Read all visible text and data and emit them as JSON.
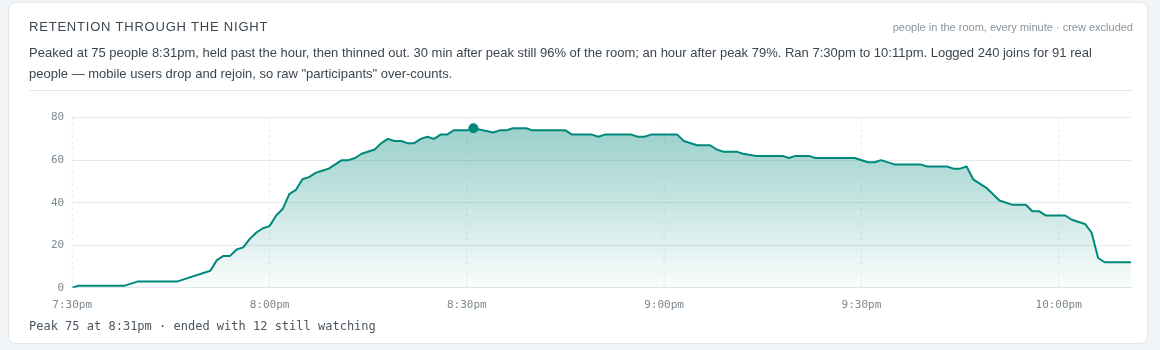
{
  "chart_data": {
    "type": "area",
    "title": "RETENTION THROUGH THE NIGHT",
    "subtitle": "Peaked at 75 people 8:31pm, held past the hour, then thinned out. 30 min after peak still 96% of the room; an hour after peak 79%. Ran 7:30pm to 10:11pm. Logged 240 joins for 91 real people — mobile users drop and rejoin, so raw \"participants\" over-counts.",
    "annotations": [
      "people in the room, every minute · crew excluded",
      "Peak 75 at 8:31pm · ended with 12 still watching"
    ],
    "xlim": [
      19.5,
      22.1833
    ],
    "xticks": [
      {
        "value": 19.5,
        "label": "7:30pm"
      },
      {
        "value": 20,
        "label": "8:00pm"
      },
      {
        "value": 20.5,
        "label": "8:30pm"
      },
      {
        "value": 21,
        "label": "9:00pm"
      },
      {
        "value": 21.5,
        "label": "9:30pm"
      },
      {
        "value": 22,
        "label": "10:00pm"
      }
    ],
    "ylim": [
      0,
      80
    ],
    "yticks": [
      0,
      20,
      40,
      60,
      80
    ],
    "grid": true,
    "legend": false,
    "series": [
      {
        "color": "#00897b",
        "x": [
          19.5,
          19.5167,
          19.6333,
          19.6667,
          19.7667,
          19.85,
          19.8667,
          19.8833,
          19.9,
          19.9167,
          19.9333,
          19.95,
          19.9667,
          19.9833,
          20,
          20.0167,
          20.0333,
          20.05,
          20.0667,
          20.0833,
          20.1,
          20.1167,
          20.1333,
          20.15,
          20.1667,
          20.1833,
          20.2,
          20.2167,
          20.2333,
          20.2667,
          20.2833,
          20.3,
          20.3167,
          20.3333,
          20.35,
          20.3667,
          20.3833,
          20.4,
          20.4167,
          20.4333,
          20.45,
          20.4667,
          20.5,
          20.5167,
          20.5667,
          20.5833,
          20.6,
          20.6167,
          20.65,
          20.6667,
          20.75,
          20.7667,
          20.8167,
          20.8333,
          20.85,
          20.9167,
          20.9333,
          20.95,
          20.9667,
          21.0333,
          21.05,
          21.0833,
          21.1167,
          21.1333,
          21.15,
          21.1833,
          21.2,
          21.2333,
          21.3,
          21.3167,
          21.3333,
          21.3667,
          21.3833,
          21.4833,
          21.5167,
          21.5333,
          21.55,
          21.5833,
          21.65,
          21.6667,
          21.7167,
          21.7333,
          21.75,
          21.7667,
          21.7833,
          21.8167,
          21.85,
          21.8833,
          21.9167,
          21.9333,
          21.95,
          21.9667,
          22.0167,
          22.0333,
          22.0667,
          22.0833,
          22.1,
          22.1167,
          22.1833
        ],
        "values": [
          0,
          1,
          1,
          3,
          3,
          8,
          13,
          15,
          15,
          18,
          19,
          23,
          26,
          28,
          29,
          34,
          37,
          44,
          46,
          51,
          52,
          54,
          55,
          56,
          58,
          60,
          60,
          61,
          63,
          65,
          68,
          70,
          69,
          69,
          68,
          68,
          70,
          71,
          70,
          72,
          72,
          74,
          74,
          75,
          73,
          74,
          74,
          75,
          75,
          74,
          74,
          72,
          72,
          71,
          72,
          72,
          71,
          71,
          72,
          72,
          69,
          67,
          67,
          65,
          64,
          64,
          63,
          62,
          62,
          61,
          62,
          62,
          61,
          61,
          59,
          59,
          60,
          58,
          58,
          57,
          57,
          56,
          56,
          57,
          51,
          47,
          41,
          39,
          39,
          36,
          36,
          34,
          34,
          32,
          30,
          26,
          14,
          12,
          12
        ],
        "marker": "none"
      },
      {
        "type": "scatter",
        "color": "#00897b",
        "x": [
          20.5167
        ],
        "values": [
          75
        ],
        "marker": "circle"
      }
    ]
  }
}
